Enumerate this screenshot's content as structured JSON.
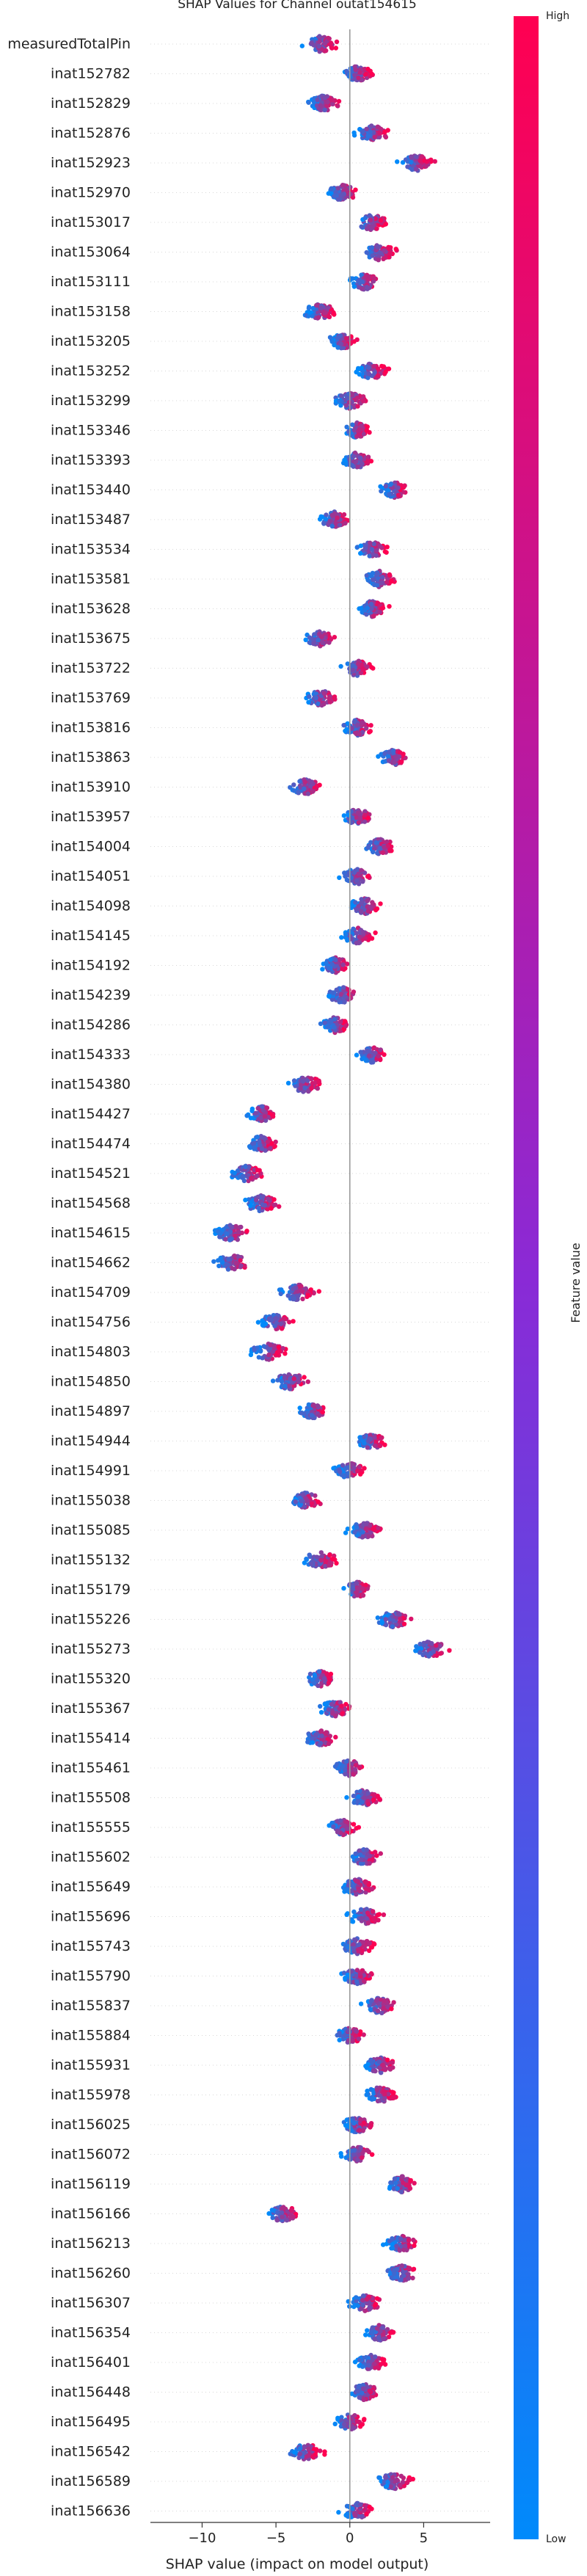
{
  "chart_data": {
    "type": "scatter",
    "title": "SHAP Values for Channel outat154615",
    "xlabel": "SHAP value (impact on model output)",
    "xlim": [
      -13.5,
      9.5
    ],
    "xticks": [
      -10,
      -5,
      0,
      5
    ],
    "colorbar": {
      "label": "Feature value",
      "high_label": "High",
      "low_label": "Low",
      "low_color": "#008afb",
      "high_color": "#ff0051"
    },
    "features": [
      {
        "name": "measuredTotalPin",
        "center": -2.0,
        "spread": 3.2,
        "dir": 1
      },
      {
        "name": "inat152782",
        "center": 0.5,
        "spread": 2.6,
        "dir": 1
      },
      {
        "name": "inat152829",
        "center": -1.8,
        "spread": 2.8,
        "dir": 1
      },
      {
        "name": "inat152876",
        "center": 1.5,
        "spread": 2.8,
        "dir": 1
      },
      {
        "name": "inat152923",
        "center": 4.5,
        "spread": 3.0,
        "dir": 1
      },
      {
        "name": "inat152970",
        "center": -0.5,
        "spread": 2.6,
        "dir": 1
      },
      {
        "name": "inat153017",
        "center": 1.5,
        "spread": 2.6,
        "dir": 1
      },
      {
        "name": "inat153064",
        "center": 2.0,
        "spread": 2.8,
        "dir": 1
      },
      {
        "name": "inat153111",
        "center": 1.0,
        "spread": 2.6,
        "dir": 1
      },
      {
        "name": "inat153158",
        "center": -2.0,
        "spread": 3.0,
        "dir": 1
      },
      {
        "name": "inat153205",
        "center": -0.5,
        "spread": 2.4,
        "dir": 1
      },
      {
        "name": "inat153252",
        "center": 1.5,
        "spread": 2.6,
        "dir": 1
      },
      {
        "name": "inat153299",
        "center": 0.0,
        "spread": 3.0,
        "dir": 1
      },
      {
        "name": "inat153346",
        "center": 0.5,
        "spread": 2.0,
        "dir": 1
      },
      {
        "name": "inat153393",
        "center": 0.5,
        "spread": 2.4,
        "dir": 1
      },
      {
        "name": "inat153440",
        "center": 3.0,
        "spread": 2.4,
        "dir": 1
      },
      {
        "name": "inat153487",
        "center": -1.0,
        "spread": 2.6,
        "dir": 1
      },
      {
        "name": "inat153534",
        "center": 1.5,
        "spread": 2.6,
        "dir": 1
      },
      {
        "name": "inat153581",
        "center": 2.0,
        "spread": 2.6,
        "dir": 1
      },
      {
        "name": "inat153628",
        "center": 1.5,
        "spread": 2.6,
        "dir": 1
      },
      {
        "name": "inat153675",
        "center": -2.0,
        "spread": 2.4,
        "dir": 1
      },
      {
        "name": "inat153722",
        "center": 0.5,
        "spread": 2.4,
        "dir": 1
      },
      {
        "name": "inat153769",
        "center": -2.0,
        "spread": 2.6,
        "dir": 1
      },
      {
        "name": "inat153816",
        "center": 0.5,
        "spread": 2.8,
        "dir": 1
      },
      {
        "name": "inat153863",
        "center": 3.0,
        "spread": 2.6,
        "dir": 1
      },
      {
        "name": "inat153910",
        "center": -3.0,
        "spread": 2.8,
        "dir": 1
      },
      {
        "name": "inat153957",
        "center": 0.5,
        "spread": 2.6,
        "dir": 1
      },
      {
        "name": "inat154004",
        "center": 2.0,
        "spread": 2.6,
        "dir": 1
      },
      {
        "name": "inat154051",
        "center": 0.5,
        "spread": 3.0,
        "dir": 1
      },
      {
        "name": "inat154098",
        "center": 1.0,
        "spread": 2.6,
        "dir": 1
      },
      {
        "name": "inat154145",
        "center": 0.5,
        "spread": 2.8,
        "dir": 1
      },
      {
        "name": "inat154192",
        "center": -1.0,
        "spread": 2.6,
        "dir": 1
      },
      {
        "name": "inat154239",
        "center": -0.5,
        "spread": 2.6,
        "dir": 1
      },
      {
        "name": "inat154286",
        "center": -1.0,
        "spread": 2.4,
        "dir": 1
      },
      {
        "name": "inat154333",
        "center": 1.5,
        "spread": 2.4,
        "dir": 1
      },
      {
        "name": "inat154380",
        "center": -3.0,
        "spread": 3.0,
        "dir": 1
      },
      {
        "name": "inat154427",
        "center": -6.0,
        "spread": 2.6,
        "dir": 1
      },
      {
        "name": "inat154474",
        "center": -6.0,
        "spread": 2.6,
        "dir": 1
      },
      {
        "name": "inat154521",
        "center": -7.0,
        "spread": 2.8,
        "dir": 1
      },
      {
        "name": "inat154568",
        "center": -6.0,
        "spread": 3.0,
        "dir": 1
      },
      {
        "name": "inat154615",
        "center": -8.0,
        "spread": 3.4,
        "dir": 1
      },
      {
        "name": "inat154662",
        "center": -8.0,
        "spread": 3.2,
        "dir": 1
      },
      {
        "name": "inat154709",
        "center": -3.5,
        "spread": 3.2,
        "dir": 1
      },
      {
        "name": "inat154756",
        "center": -5.0,
        "spread": 3.0,
        "dir": 1
      },
      {
        "name": "inat154803",
        "center": -5.5,
        "spread": 3.2,
        "dir": 1
      },
      {
        "name": "inat154850",
        "center": -4.0,
        "spread": 3.2,
        "dir": 1
      },
      {
        "name": "inat154897",
        "center": -2.5,
        "spread": 2.4,
        "dir": 1
      },
      {
        "name": "inat154944",
        "center": 1.5,
        "spread": 2.6,
        "dir": 1
      },
      {
        "name": "inat154991",
        "center": 0.0,
        "spread": 2.6,
        "dir": 1
      },
      {
        "name": "inat155038",
        "center": -3.0,
        "spread": 2.8,
        "dir": 1
      },
      {
        "name": "inat155085",
        "center": 1.0,
        "spread": 2.8,
        "dir": 1
      },
      {
        "name": "inat155132",
        "center": -2.0,
        "spread": 3.0,
        "dir": 1
      },
      {
        "name": "inat155179",
        "center": 0.5,
        "spread": 2.2,
        "dir": 1
      },
      {
        "name": "inat155226",
        "center": 3.0,
        "spread": 2.8,
        "dir": 1
      },
      {
        "name": "inat155273",
        "center": 5.5,
        "spread": 3.0,
        "dir": 1
      },
      {
        "name": "inat155320",
        "center": -2.0,
        "spread": 2.6,
        "dir": 1
      },
      {
        "name": "inat155367",
        "center": -1.0,
        "spread": 2.6,
        "dir": 1
      },
      {
        "name": "inat155414",
        "center": -2.0,
        "spread": 2.6,
        "dir": 1
      },
      {
        "name": "inat155461",
        "center": 0.0,
        "spread": 2.6,
        "dir": 1
      },
      {
        "name": "inat155508",
        "center": 1.0,
        "spread": 2.6,
        "dir": 1
      },
      {
        "name": "inat155555",
        "center": -0.5,
        "spread": 2.4,
        "dir": 1
      },
      {
        "name": "inat155602",
        "center": 1.0,
        "spread": 3.0,
        "dir": 1
      },
      {
        "name": "inat155649",
        "center": 0.5,
        "spread": 3.0,
        "dir": 1
      },
      {
        "name": "inat155696",
        "center": 1.0,
        "spread": 3.0,
        "dir": 1
      },
      {
        "name": "inat155743",
        "center": 0.5,
        "spread": 2.6,
        "dir": 1
      },
      {
        "name": "inat155790",
        "center": 0.5,
        "spread": 2.6,
        "dir": 1
      },
      {
        "name": "inat155837",
        "center": 2.0,
        "spread": 2.6,
        "dir": 1
      },
      {
        "name": "inat155884",
        "center": 0.0,
        "spread": 2.4,
        "dir": 1
      },
      {
        "name": "inat155931",
        "center": 2.0,
        "spread": 2.6,
        "dir": 1
      },
      {
        "name": "inat155978",
        "center": 2.0,
        "spread": 2.6,
        "dir": 1
      },
      {
        "name": "inat156025",
        "center": 0.5,
        "spread": 2.6,
        "dir": 1
      },
      {
        "name": "inat156072",
        "center": 0.5,
        "spread": 2.6,
        "dir": 1
      },
      {
        "name": "inat156119",
        "center": 3.5,
        "spread": 2.6,
        "dir": 1
      },
      {
        "name": "inat156166",
        "center": -4.5,
        "spread": 2.8,
        "dir": 1
      },
      {
        "name": "inat156213",
        "center": 3.5,
        "spread": 2.8,
        "dir": 1
      },
      {
        "name": "inat156260",
        "center": 3.5,
        "spread": 2.8,
        "dir": 1
      },
      {
        "name": "inat156307",
        "center": 1.0,
        "spread": 2.8,
        "dir": 1
      },
      {
        "name": "inat156354",
        "center": 2.0,
        "spread": 2.6,
        "dir": 1
      },
      {
        "name": "inat156401",
        "center": 1.5,
        "spread": 2.6,
        "dir": 1
      },
      {
        "name": "inat156448",
        "center": 1.0,
        "spread": 2.6,
        "dir": 1
      },
      {
        "name": "inat156495",
        "center": 0.0,
        "spread": 2.6,
        "dir": 1
      },
      {
        "name": "inat156542",
        "center": -3.0,
        "spread": 3.0,
        "dir": 1
      },
      {
        "name": "inat156589",
        "center": 3.0,
        "spread": 2.8,
        "dir": 1
      },
      {
        "name": "inat156636",
        "center": 0.5,
        "spread": 2.8,
        "dir": 1
      }
    ]
  }
}
